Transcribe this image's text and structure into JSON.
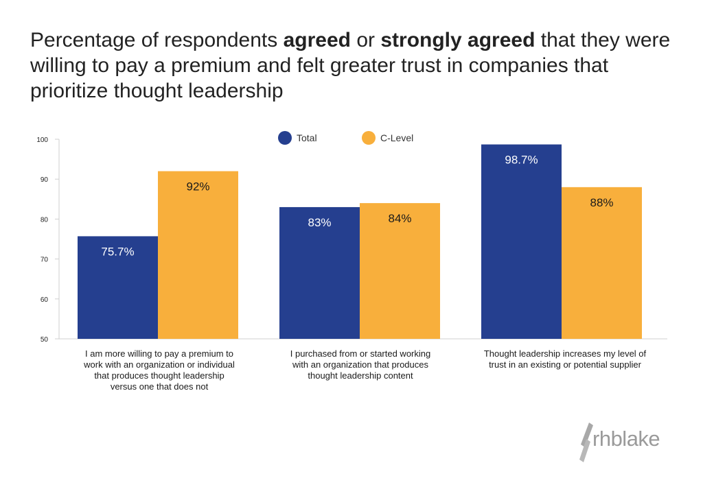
{
  "title": {
    "part1": "Percentage of respondents ",
    "bold1": "agreed",
    "part2": " or ",
    "bold2": "strongly agreed",
    "part3": " that they were willing to pay a premium and felt greater trust in companies that prioritize thought leadership"
  },
  "chart_data": {
    "type": "bar",
    "categories": [
      "I am more willing to pay a premium to work with an organization or individual that produces thought leadership versus one that does not",
      "I purchased from or started working with an organization that produces thought leadership content",
      "Thought leadership increases my level of trust in an existing or potential supplier"
    ],
    "series": [
      {
        "name": "Total",
        "color": "#253f8f",
        "values": [
          75.7,
          83,
          98.7
        ],
        "labels": [
          "75.7%",
          "83%",
          "98.7%"
        ]
      },
      {
        "name": "C-Level",
        "color": "#f8af3c",
        "values": [
          92,
          84,
          88
        ],
        "labels": [
          "92%",
          "84%",
          "88%"
        ]
      }
    ],
    "ylim": [
      50,
      100
    ],
    "yticks": [
      50,
      60,
      70,
      80,
      90,
      100
    ],
    "legend_position": "top-center"
  },
  "logo": {
    "text": "rhblake"
  }
}
